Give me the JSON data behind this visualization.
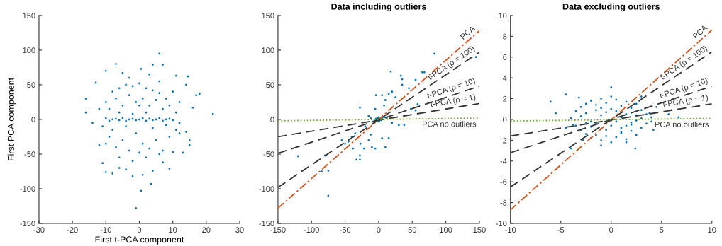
{
  "chart_data": [
    {
      "type": "scatter",
      "xlabel": "First t-PCA component",
      "ylabel": "First PCA component",
      "xlim": [
        -30,
        30
      ],
      "ylim": [
        -150,
        150
      ],
      "xticks": [
        -30,
        -20,
        -10,
        0,
        10,
        20,
        30
      ],
      "yticks": [
        -150,
        -100,
        -50,
        0,
        50,
        100,
        150
      ],
      "series": [
        {
          "color": "#0072bd",
          "x": [
            6,
            -7,
            4,
            7,
            -10,
            0.5,
            -5,
            14.5,
            11,
            -13,
            14,
            18,
            17,
            16,
            22,
            -16,
            -16,
            -14,
            -12,
            -11,
            -10,
            -8,
            -2,
            1,
            3.5,
            0.5,
            -1,
            9,
            15,
            15,
            14,
            13,
            10,
            12,
            -4,
            4,
            -6,
            7,
            -8,
            -6,
            -4,
            -2,
            0,
            2,
            4,
            6,
            8,
            -10,
            -9,
            -7,
            -5,
            -3,
            -1,
            1,
            3,
            5,
            7,
            9,
            11,
            12,
            -11,
            -9,
            -7,
            -5,
            -3,
            -1,
            1,
            3,
            5,
            7,
            9,
            11,
            -8,
            -6,
            -2,
            2,
            6,
            -4,
            4,
            0,
            -12,
            10,
            -6,
            2,
            8,
            -10,
            12,
            -2,
            0,
            6,
            -3,
            3,
            -10,
            -9,
            -8,
            -7,
            -6,
            -5,
            -4,
            -3,
            -2,
            -1,
            0,
            1,
            2,
            3,
            4,
            5,
            6,
            7,
            8,
            9,
            10
          ],
          "values": [
            95,
            80,
            79,
            79,
            70,
            73,
            67,
            62,
            63,
            53,
            50,
            37,
            35,
            17,
            8,
            30,
            10,
            -5,
            -37,
            -63,
            -76,
            -78,
            -82,
            -80,
            -93,
            -103,
            -128,
            -71,
            -30,
            -37,
            -18,
            -48,
            -47,
            -20,
            -72,
            -74,
            -70,
            -62,
            40,
            45,
            50,
            48,
            52,
            45,
            42,
            38,
            30,
            25,
            15,
            30,
            20,
            35,
            25,
            30,
            20,
            28,
            15,
            20,
            10,
            25,
            -10,
            -25,
            -40,
            -30,
            -45,
            -20,
            -35,
            -42,
            -30,
            -45,
            -25,
            -15,
            -15,
            -55,
            -60,
            -55,
            -50,
            -10,
            -12,
            -48,
            15,
            40,
            10,
            10,
            -8,
            -35,
            -5,
            8,
            20,
            55,
            60,
            65,
            2,
            -2,
            0,
            1,
            -1,
            2,
            -2,
            0,
            1,
            -1,
            0,
            2,
            -2,
            1,
            -1,
            0,
            2,
            -2,
            0,
            1,
            -1
          ]
        }
      ]
    },
    {
      "type": "scatter",
      "title": "Data including outliers",
      "xlim": [
        -150,
        150
      ],
      "ylim": [
        -150,
        150
      ],
      "xticks": [
        -150,
        -100,
        -50,
        0,
        50,
        100,
        150
      ],
      "yticks": [
        -150,
        -100,
        -50,
        0,
        50,
        100,
        150
      ],
      "series": [
        {
          "color": "#0072bd",
          "x": [
            83,
            -120,
            -75,
            -85,
            -75,
            -80,
            18,
            33,
            35,
            35,
            55,
            65,
            68,
            145,
            -4,
            -28,
            20,
            15,
            10,
            8,
            5,
            25,
            45,
            48,
            58,
            55,
            -50,
            -45,
            -38,
            -33,
            -28,
            -28,
            -22,
            -15,
            -10,
            -5,
            10,
            15,
            5,
            -12,
            -20,
            -15,
            -12,
            -5,
            30,
            38,
            20,
            -35,
            -55,
            -40,
            -27,
            2,
            1,
            -1,
            3,
            -3,
            5,
            -5,
            8,
            12,
            -8,
            0,
            0,
            4,
            -4
          ],
          "values": [
            95,
            -53,
            -110,
            -75,
            -74,
            -52,
            69,
            63,
            58,
            50,
            57,
            68,
            68,
            90,
            35,
            17,
            40,
            37,
            28,
            20,
            35,
            32,
            45,
            15,
            22,
            13,
            -35,
            -32,
            -42,
            -58,
            -58,
            -52,
            -42,
            -30,
            -40,
            -42,
            -40,
            -27,
            -27,
            -22,
            -10,
            5,
            2,
            15,
            -8,
            -8,
            -5,
            -20,
            -30,
            -25,
            -35,
            1,
            -2,
            2,
            0,
            0,
            2,
            -2,
            3,
            2,
            -3,
            3,
            -3,
            -1,
            1
          ]
        },
        {
          "type": "line",
          "name": "PCA",
          "color": "#d95319",
          "line_style": "dashdot",
          "x": [
            -150,
            150
          ],
          "values": [
            -128,
            128
          ]
        },
        {
          "type": "line",
          "name": "t-PCA (ρ = 100)",
          "color": "#333333",
          "line_style": "dashed",
          "x": [
            -150,
            150
          ],
          "values": [
            -98,
            97
          ]
        },
        {
          "type": "line",
          "name": "t-PCA (ρ = 10)",
          "color": "#333333",
          "line_style": "dashed",
          "x": [
            -150,
            150
          ],
          "values": [
            -49,
            48
          ]
        },
        {
          "type": "line",
          "name": "t-PCA (ρ = 1)",
          "color": "#333333",
          "line_style": "dashed",
          "x": [
            -150,
            150
          ],
          "values": [
            -25,
            23
          ]
        },
        {
          "type": "line",
          "name": "PCA no outliers",
          "color": "#77ac30",
          "line_style": "dotted",
          "x": [
            -150,
            150
          ],
          "values": [
            -2,
            2
          ]
        }
      ]
    },
    {
      "type": "scatter",
      "title": "Data excluding outliers",
      "xlim": [
        -10,
        10
      ],
      "ylim": [
        -10,
        10
      ],
      "xticks": [
        -10,
        -5,
        0,
        5,
        10
      ],
      "yticks": [
        -10,
        -8,
        -6,
        -4,
        -2,
        0,
        2,
        4,
        6,
        8,
        10
      ],
      "series": [
        {
          "color": "#0072bd",
          "x": [
            -6,
            -4.5,
            0,
            2.4,
            6,
            6.7,
            5.7,
            -5.5,
            -4,
            4.5,
            -3.2,
            3,
            -1,
            1.5,
            -3.5,
            -3,
            -2.5,
            -2,
            -1.5,
            -1,
            -0.5,
            0,
            0.5,
            1,
            1.5,
            2,
            2.5,
            3,
            3.5,
            -3.5,
            -3,
            -2.5,
            -2,
            -1.5,
            -1,
            -0.5,
            0,
            0.5,
            1,
            1.5,
            2,
            2.5,
            3,
            3.5,
            4,
            -4,
            -3,
            -2,
            -1,
            0,
            1,
            2,
            3,
            4,
            -2.5,
            -1.5,
            -0.5,
            0.5,
            1.5,
            2.5,
            -2,
            -1,
            0,
            1,
            2,
            -2.5,
            -1.5,
            -0.5,
            0.5,
            1.5,
            2.5,
            -1,
            0,
            1,
            -3.8,
            3.8,
            -2.8,
            2.8,
            -4.5,
            4.2
          ],
          "values": [
            1.7,
            2.4,
            3.1,
            -2.8,
            0.9,
            0.2,
            0.5,
            0.6,
            -2.8,
            1.2,
            2.1,
            2.2,
            -2.5,
            -2.2,
            0.8,
            1.2,
            1.5,
            1.8,
            1.4,
            2.0,
            1.6,
            2.2,
            1.9,
            1.3,
            1.7,
            1.1,
            1.5,
            0.9,
            0.5,
            -0.6,
            -1.0,
            -1.4,
            -1.8,
            -1.5,
            -2.0,
            -1.6,
            -2.2,
            -1.7,
            -1.3,
            -1.9,
            -1.1,
            -1.5,
            -0.8,
            -0.4,
            0.2,
            0.1,
            0.3,
            -0.2,
            0.4,
            -0.1,
            0.2,
            -0.3,
            0.1,
            -0.2,
            0.6,
            0.9,
            0.7,
            0.8,
            0.5,
            0.4,
            -0.7,
            -0.9,
            -0.6,
            -0.8,
            -0.5,
            -0.3,
            -0.4,
            -1.0,
            -0.2,
            -0.6,
            -0.1,
            1.1,
            1.0,
            -1.2,
            -0.5,
            0.6,
            -2.0,
            1.8,
            -0.8,
            -1.0
          ]
        },
        {
          "type": "line",
          "name": "PCA",
          "color": "#d95319",
          "line_style": "dashdot",
          "x": [
            -10,
            10
          ],
          "values": [
            -8.7,
            8.6
          ]
        },
        {
          "type": "line",
          "name": "t-PCA (ρ = 100)",
          "color": "#333333",
          "line_style": "dashed",
          "x": [
            -10,
            10
          ],
          "values": [
            -6.5,
            6.5
          ]
        },
        {
          "type": "line",
          "name": "t-PCA (ρ = 10)",
          "color": "#333333",
          "line_style": "dashed",
          "x": [
            -10,
            10
          ],
          "values": [
            -3.2,
            3.2
          ]
        },
        {
          "type": "line",
          "name": "t-PCA (ρ = 1)",
          "color": "#333333",
          "line_style": "dashed",
          "x": [
            -10,
            10
          ],
          "values": [
            -1.6,
            1.5
          ]
        },
        {
          "type": "line",
          "name": "PCA no outliers",
          "color": "#77ac30",
          "line_style": "dotted",
          "x": [
            -10,
            10
          ],
          "values": [
            -0.15,
            0.1
          ]
        }
      ]
    }
  ]
}
